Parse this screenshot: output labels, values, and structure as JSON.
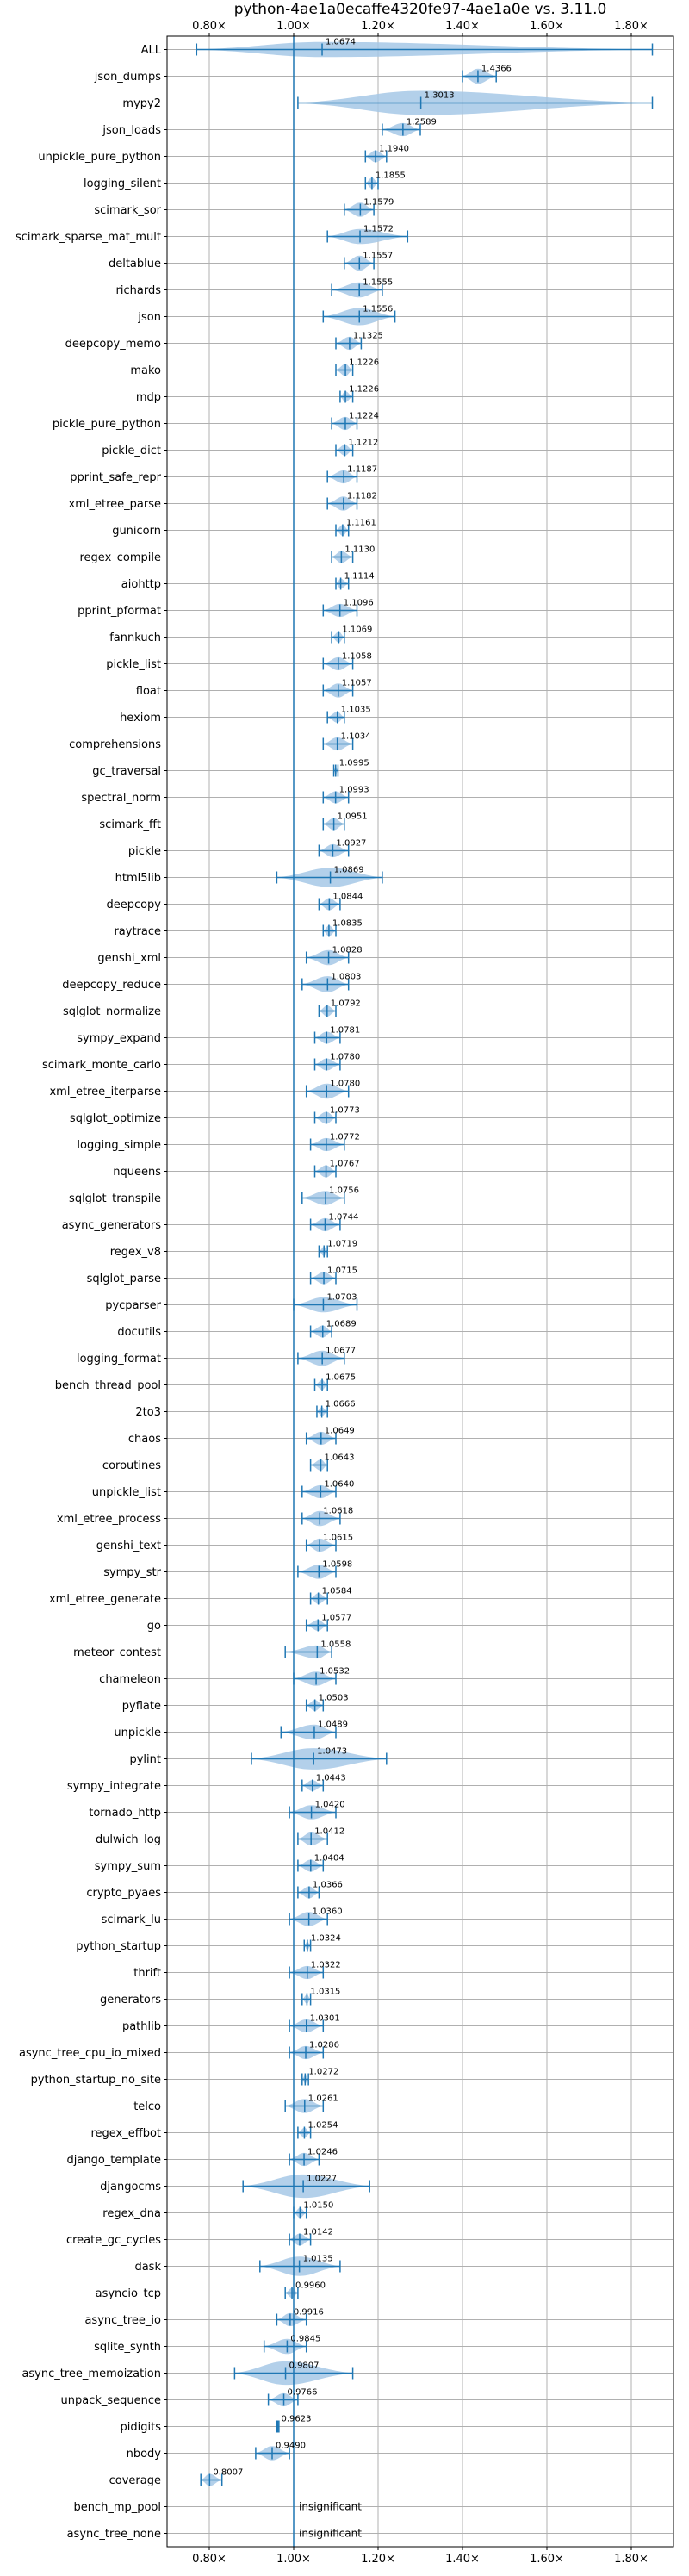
{
  "chart_data": {
    "type": "violin",
    "title": "python-4ae1a0ecaffe4320fe97-4ae1a0e vs. 3.11.0",
    "xlim": [
      0.7,
      1.9
    ],
    "xticks": [
      "0.80×",
      "1.00×",
      "1.20×",
      "1.40×",
      "1.60×",
      "1.80×"
    ],
    "xtick_values": [
      0.8,
      1.0,
      1.2,
      1.4,
      1.6,
      1.8
    ],
    "reference_line": 1.0,
    "grid": true,
    "rows": [
      {
        "name": "ALL",
        "mean": 1.0674,
        "label": "1.0674",
        "lo": 0.77,
        "hi": 1.85,
        "w": 0.04
      },
      {
        "name": "json_dumps",
        "mean": 1.4366,
        "label": "1.4366",
        "lo": 1.4,
        "hi": 1.48,
        "w": 0.04
      },
      {
        "name": "mypy2",
        "mean": 1.3013,
        "label": "1.3013",
        "lo": 1.01,
        "hi": 1.85,
        "w": 0.5
      },
      {
        "name": "json_loads",
        "mean": 1.2589,
        "label": "1.2589",
        "lo": 1.21,
        "hi": 1.3,
        "w": 0.03
      },
      {
        "name": "unpickle_pure_python",
        "mean": 1.194,
        "label": "1.1940",
        "lo": 1.17,
        "hi": 1.22,
        "w": 0.025
      },
      {
        "name": "logging_silent",
        "mean": 1.1855,
        "label": "1.1855",
        "lo": 1.17,
        "hi": 1.2,
        "w": 0.02
      },
      {
        "name": "scimark_sor",
        "mean": 1.1579,
        "label": "1.1579",
        "lo": 1.12,
        "hi": 1.19,
        "w": 0.035
      },
      {
        "name": "scimark_sparse_mat_mult",
        "mean": 1.1572,
        "label": "1.1572",
        "lo": 1.08,
        "hi": 1.27,
        "w": 0.04
      },
      {
        "name": "deltablue",
        "mean": 1.1557,
        "label": "1.1557",
        "lo": 1.12,
        "hi": 1.19,
        "w": 0.04
      },
      {
        "name": "richards",
        "mean": 1.1555,
        "label": "1.1555",
        "lo": 1.09,
        "hi": 1.21,
        "w": 0.04
      },
      {
        "name": "json",
        "mean": 1.1556,
        "label": "1.1556",
        "lo": 1.07,
        "hi": 1.24,
        "w": 0.05
      },
      {
        "name": "deepcopy_memo",
        "mean": 1.1325,
        "label": "1.1325",
        "lo": 1.1,
        "hi": 1.16,
        "w": 0.03
      },
      {
        "name": "mako",
        "mean": 1.1226,
        "label": "1.1226",
        "lo": 1.1,
        "hi": 1.14,
        "w": 0.025
      },
      {
        "name": "mdp",
        "mean": 1.1226,
        "label": "1.1226",
        "lo": 1.11,
        "hi": 1.14,
        "w": 0.02
      },
      {
        "name": "pickle_pure_python",
        "mean": 1.1224,
        "label": "1.1224",
        "lo": 1.09,
        "hi": 1.15,
        "w": 0.03
      },
      {
        "name": "pickle_dict",
        "mean": 1.1212,
        "label": "1.1212",
        "lo": 1.1,
        "hi": 1.14,
        "w": 0.02
      },
      {
        "name": "pprint_safe_repr",
        "mean": 1.1187,
        "label": "1.1187",
        "lo": 1.08,
        "hi": 1.15,
        "w": 0.03
      },
      {
        "name": "xml_etree_parse",
        "mean": 1.1182,
        "label": "1.1182",
        "lo": 1.08,
        "hi": 1.15,
        "w": 0.035
      },
      {
        "name": "gunicorn",
        "mean": 1.1161,
        "label": "1.1161",
        "lo": 1.1,
        "hi": 1.13,
        "w": 0.02
      },
      {
        "name": "regex_compile",
        "mean": 1.113,
        "label": "1.1130",
        "lo": 1.09,
        "hi": 1.14,
        "w": 0.025
      },
      {
        "name": "aiohttp",
        "mean": 1.1114,
        "label": "1.1114",
        "lo": 1.1,
        "hi": 1.13,
        "w": 0.015
      },
      {
        "name": "pprint_pformat",
        "mean": 1.1096,
        "label": "1.1096",
        "lo": 1.07,
        "hi": 1.15,
        "w": 0.03
      },
      {
        "name": "fannkuch",
        "mean": 1.1069,
        "label": "1.1069",
        "lo": 1.09,
        "hi": 1.12,
        "w": 0.02
      },
      {
        "name": "pickle_list",
        "mean": 1.1058,
        "label": "1.1058",
        "lo": 1.07,
        "hi": 1.14,
        "w": 0.03
      },
      {
        "name": "float",
        "mean": 1.1057,
        "label": "1.1057",
        "lo": 1.07,
        "hi": 1.14,
        "w": 0.035
      },
      {
        "name": "hexiom",
        "mean": 1.1035,
        "label": "1.1035",
        "lo": 1.08,
        "hi": 1.12,
        "w": 0.02
      },
      {
        "name": "comprehensions",
        "mean": 1.1034,
        "label": "1.1034",
        "lo": 1.07,
        "hi": 1.14,
        "w": 0.03
      },
      {
        "name": "gc_traversal",
        "mean": 1.0995,
        "label": "1.0995",
        "lo": 1.095,
        "hi": 1.105,
        "w": 0.008
      },
      {
        "name": "spectral_norm",
        "mean": 1.0993,
        "label": "1.0993",
        "lo": 1.07,
        "hi": 1.13,
        "w": 0.025
      },
      {
        "name": "scimark_fft",
        "mean": 1.0951,
        "label": "1.0951",
        "lo": 1.07,
        "hi": 1.12,
        "w": 0.025
      },
      {
        "name": "pickle",
        "mean": 1.0927,
        "label": "1.0927",
        "lo": 1.06,
        "hi": 1.13,
        "w": 0.03
      },
      {
        "name": "html5lib",
        "mean": 1.0869,
        "label": "1.0869",
        "lo": 0.96,
        "hi": 1.21,
        "w": 0.06
      },
      {
        "name": "deepcopy",
        "mean": 1.0844,
        "label": "1.0844",
        "lo": 1.06,
        "hi": 1.11,
        "w": 0.025
      },
      {
        "name": "raytrace",
        "mean": 1.0835,
        "label": "1.0835",
        "lo": 1.07,
        "hi": 1.1,
        "w": 0.02
      },
      {
        "name": "genshi_xml",
        "mean": 1.0828,
        "label": "1.0828",
        "lo": 1.03,
        "hi": 1.13,
        "w": 0.04
      },
      {
        "name": "deepcopy_reduce",
        "mean": 1.0803,
        "label": "1.0803",
        "lo": 1.02,
        "hi": 1.13,
        "w": 0.045
      },
      {
        "name": "sqlglot_normalize",
        "mean": 1.0792,
        "label": "1.0792",
        "lo": 1.06,
        "hi": 1.1,
        "w": 0.02
      },
      {
        "name": "sympy_expand",
        "mean": 1.0781,
        "label": "1.0781",
        "lo": 1.05,
        "hi": 1.11,
        "w": 0.025
      },
      {
        "name": "scimark_monte_carlo",
        "mean": 1.078,
        "label": "1.0780",
        "lo": 1.05,
        "hi": 1.11,
        "w": 0.025
      },
      {
        "name": "xml_etree_iterparse",
        "mean": 1.078,
        "label": "1.0780",
        "lo": 1.03,
        "hi": 1.13,
        "w": 0.04
      },
      {
        "name": "sqlglot_optimize",
        "mean": 1.0773,
        "label": "1.0773",
        "lo": 1.05,
        "hi": 1.1,
        "w": 0.025
      },
      {
        "name": "logging_simple",
        "mean": 1.0772,
        "label": "1.0772",
        "lo": 1.04,
        "hi": 1.12,
        "w": 0.03
      },
      {
        "name": "nqueens",
        "mean": 1.0767,
        "label": "1.0767",
        "lo": 1.05,
        "hi": 1.1,
        "w": 0.025
      },
      {
        "name": "sqlglot_transpile",
        "mean": 1.0756,
        "label": "1.0756",
        "lo": 1.02,
        "hi": 1.12,
        "w": 0.035
      },
      {
        "name": "async_generators",
        "mean": 1.0744,
        "label": "1.0744",
        "lo": 1.04,
        "hi": 1.11,
        "w": 0.03
      },
      {
        "name": "regex_v8",
        "mean": 1.0719,
        "label": "1.0719",
        "lo": 1.06,
        "hi": 1.08,
        "w": 0.012
      },
      {
        "name": "sqlglot_parse",
        "mean": 1.0715,
        "label": "1.0715",
        "lo": 1.04,
        "hi": 1.1,
        "w": 0.025
      },
      {
        "name": "pycparser",
        "mean": 1.0703,
        "label": "1.0703",
        "lo": 1.0,
        "hi": 1.15,
        "w": 0.04
      },
      {
        "name": "docutils",
        "mean": 1.0689,
        "label": "1.0689",
        "lo": 1.04,
        "hi": 1.09,
        "w": 0.025
      },
      {
        "name": "logging_format",
        "mean": 1.0677,
        "label": "1.0677",
        "lo": 1.01,
        "hi": 1.12,
        "w": 0.04
      },
      {
        "name": "bench_thread_pool",
        "mean": 1.0675,
        "label": "1.0675",
        "lo": 1.05,
        "hi": 1.08,
        "w": 0.015
      },
      {
        "name": "2to3",
        "mean": 1.0666,
        "label": "1.0666",
        "lo": 1.055,
        "hi": 1.08,
        "w": 0.01
      },
      {
        "name": "chaos",
        "mean": 1.0649,
        "label": "1.0649",
        "lo": 1.03,
        "hi": 1.1,
        "w": 0.03
      },
      {
        "name": "coroutines",
        "mean": 1.0643,
        "label": "1.0643",
        "lo": 1.04,
        "hi": 1.08,
        "w": 0.02
      },
      {
        "name": "unpickle_list",
        "mean": 1.064,
        "label": "1.0640",
        "lo": 1.02,
        "hi": 1.1,
        "w": 0.03
      },
      {
        "name": "xml_etree_process",
        "mean": 1.0618,
        "label": "1.0618",
        "lo": 1.02,
        "hi": 1.11,
        "w": 0.04
      },
      {
        "name": "genshi_text",
        "mean": 1.0615,
        "label": "1.0615",
        "lo": 1.03,
        "hi": 1.1,
        "w": 0.03
      },
      {
        "name": "sympy_str",
        "mean": 1.0598,
        "label": "1.0598",
        "lo": 1.01,
        "hi": 1.1,
        "w": 0.035
      },
      {
        "name": "xml_etree_generate",
        "mean": 1.0584,
        "label": "1.0584",
        "lo": 1.04,
        "hi": 1.08,
        "w": 0.02
      },
      {
        "name": "go",
        "mean": 1.0577,
        "label": "1.0577",
        "lo": 1.03,
        "hi": 1.08,
        "w": 0.02
      },
      {
        "name": "meteor_contest",
        "mean": 1.0558,
        "label": "1.0558",
        "lo": 0.98,
        "hi": 1.09,
        "w": 0.03
      },
      {
        "name": "chameleon",
        "mean": 1.0532,
        "label": "1.0532",
        "lo": 1.0,
        "hi": 1.1,
        "w": 0.035
      },
      {
        "name": "pyflate",
        "mean": 1.0503,
        "label": "1.0503",
        "lo": 1.03,
        "hi": 1.07,
        "w": 0.02
      },
      {
        "name": "unpickle",
        "mean": 1.0489,
        "label": "1.0489",
        "lo": 0.97,
        "hi": 1.1,
        "w": 0.04
      },
      {
        "name": "pylint",
        "mean": 1.0473,
        "label": "1.0473",
        "lo": 0.9,
        "hi": 1.22,
        "w": 0.07
      },
      {
        "name": "sympy_integrate",
        "mean": 1.0443,
        "label": "1.0443",
        "lo": 1.02,
        "hi": 1.07,
        "w": 0.02
      },
      {
        "name": "tornado_http",
        "mean": 1.042,
        "label": "1.0420",
        "lo": 0.99,
        "hi": 1.1,
        "w": 0.035
      },
      {
        "name": "dulwich_log",
        "mean": 1.0412,
        "label": "1.0412",
        "lo": 1.01,
        "hi": 1.08,
        "w": 0.03
      },
      {
        "name": "sympy_sum",
        "mean": 1.0404,
        "label": "1.0404",
        "lo": 1.01,
        "hi": 1.07,
        "w": 0.025
      },
      {
        "name": "crypto_pyaes",
        "mean": 1.0366,
        "label": "1.0366",
        "lo": 1.01,
        "hi": 1.06,
        "w": 0.025
      },
      {
        "name": "scimark_lu",
        "mean": 1.036,
        "label": "1.0360",
        "lo": 0.99,
        "hi": 1.08,
        "w": 0.035
      },
      {
        "name": "python_startup",
        "mean": 1.0324,
        "label": "1.0324",
        "lo": 1.025,
        "hi": 1.04,
        "w": 0.008
      },
      {
        "name": "thrift",
        "mean": 1.0322,
        "label": "1.0322",
        "lo": 0.99,
        "hi": 1.07,
        "w": 0.03
      },
      {
        "name": "generators",
        "mean": 1.0315,
        "label": "1.0315",
        "lo": 1.02,
        "hi": 1.04,
        "w": 0.01
      },
      {
        "name": "pathlib",
        "mean": 1.0301,
        "label": "1.0301",
        "lo": 0.99,
        "hi": 1.07,
        "w": 0.03
      },
      {
        "name": "async_tree_cpu_io_mixed",
        "mean": 1.0286,
        "label": "1.0286",
        "lo": 0.99,
        "hi": 1.07,
        "w": 0.03
      },
      {
        "name": "python_startup_no_site",
        "mean": 1.0272,
        "label": "1.0272",
        "lo": 1.02,
        "hi": 1.035,
        "w": 0.008
      },
      {
        "name": "telco",
        "mean": 1.0261,
        "label": "1.0261",
        "lo": 0.98,
        "hi": 1.07,
        "w": 0.035
      },
      {
        "name": "regex_effbot",
        "mean": 1.0254,
        "label": "1.0254",
        "lo": 1.01,
        "hi": 1.04,
        "w": 0.015
      },
      {
        "name": "django_template",
        "mean": 1.0246,
        "label": "1.0246",
        "lo": 0.99,
        "hi": 1.06,
        "w": 0.03
      },
      {
        "name": "djangocms",
        "mean": 1.0227,
        "label": "1.0227",
        "lo": 0.88,
        "hi": 1.18,
        "w": 0.08
      },
      {
        "name": "regex_dna",
        "mean": 1.015,
        "label": "1.0150",
        "lo": 1.0,
        "hi": 1.03,
        "w": 0.015
      },
      {
        "name": "create_gc_cycles",
        "mean": 1.0142,
        "label": "1.0142",
        "lo": 0.99,
        "hi": 1.04,
        "w": 0.025
      },
      {
        "name": "dask",
        "mean": 1.0135,
        "label": "1.0135",
        "lo": 0.92,
        "hi": 1.11,
        "w": 0.06
      },
      {
        "name": "asyncio_tcp",
        "mean": 0.996,
        "label": "0.9960",
        "lo": 0.98,
        "hi": 1.01,
        "w": 0.015
      },
      {
        "name": "async_tree_io",
        "mean": 0.9916,
        "label": "0.9916",
        "lo": 0.96,
        "hi": 1.03,
        "w": 0.03
      },
      {
        "name": "sqlite_synth",
        "mean": 0.9845,
        "label": "0.9845",
        "lo": 0.93,
        "hi": 1.03,
        "w": 0.04
      },
      {
        "name": "async_tree_memoization",
        "mean": 0.9807,
        "label": "0.9807",
        "lo": 0.86,
        "hi": 1.14,
        "w": 0.08
      },
      {
        "name": "unpack_sequence",
        "mean": 0.9766,
        "label": "0.9766",
        "lo": 0.94,
        "hi": 1.01,
        "w": 0.03
      },
      {
        "name": "pidigits",
        "mean": 0.9623,
        "label": "0.9623",
        "lo": 0.96,
        "hi": 0.965,
        "w": 0.004
      },
      {
        "name": "nbody",
        "mean": 0.949,
        "label": "0.9490",
        "lo": 0.91,
        "hi": 0.99,
        "w": 0.035
      },
      {
        "name": "coverage",
        "mean": 0.8007,
        "label": "0.8007",
        "lo": 0.78,
        "hi": 0.83,
        "w": 0.025
      },
      {
        "name": "bench_mp_pool",
        "mean": null,
        "label": "insignificant",
        "lo": null,
        "hi": null,
        "w": 0
      },
      {
        "name": "async_tree_none",
        "mean": null,
        "label": "insignificant",
        "lo": null,
        "hi": null,
        "w": 0
      }
    ]
  },
  "colors": {
    "violin_fill": "#a6c8e6",
    "violin_line": "#1f77b4",
    "grid": "#b0b0b0",
    "reference": "#1f77b4"
  }
}
